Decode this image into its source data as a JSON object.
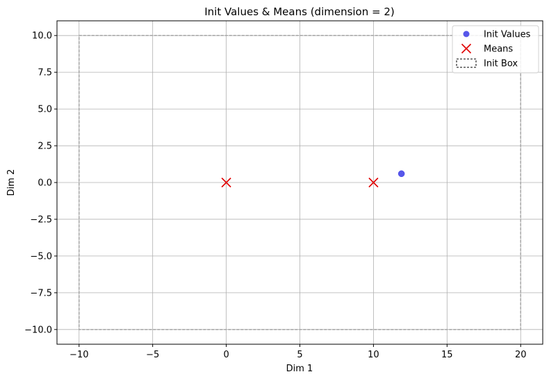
{
  "chart_data": {
    "type": "scatter",
    "title": "Init Values & Means (dimension = 2)",
    "xlabel": "Dim 1",
    "ylabel": "Dim 2",
    "xlim": [
      -11.5,
      21.5
    ],
    "ylim": [
      -11.0,
      11.0
    ],
    "xticks": [
      -10,
      -5,
      0,
      5,
      10,
      15,
      20
    ],
    "xtick_labels": [
      "−10",
      "−5",
      "0",
      "5",
      "10",
      "15",
      "20"
    ],
    "yticks": [
      -10,
      -7.5,
      -5,
      -2.5,
      0,
      2.5,
      5,
      7.5,
      10
    ],
    "ytick_labels": [
      "−10.0",
      "−7.5",
      "−5.0",
      "−2.5",
      "0.0",
      "2.5",
      "5.0",
      "7.5",
      "10.0"
    ],
    "grid": true,
    "legend_position": "top-right",
    "series": [
      {
        "name": "Init Values",
        "marker": "circle",
        "color": "#3a3ae6",
        "points": [
          [
            11.9,
            0.6
          ]
        ]
      },
      {
        "name": "Means",
        "marker": "x",
        "color": "#e00000",
        "points": [
          [
            0,
            0
          ],
          [
            10,
            0
          ]
        ]
      }
    ],
    "init_box": {
      "name": "Init Box",
      "x": [
        -10,
        20
      ],
      "y": [
        -10,
        10
      ],
      "style": "dashed",
      "color": "#aaaaaa"
    }
  }
}
